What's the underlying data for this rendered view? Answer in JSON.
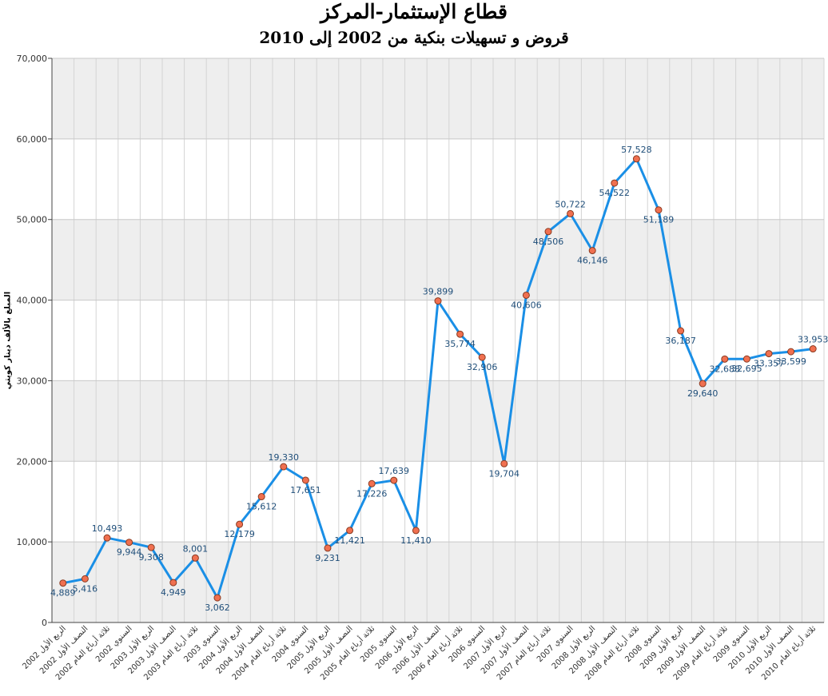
{
  "chart_data": {
    "type": "line",
    "title": "قطاع الإستثمار-المركز",
    "subtitle": "قروض و تسهيلات بنكية من 2002 إلى 2010",
    "ylabel": "المبلغ بالألف دينار كويتي",
    "ylim": [
      0,
      70000
    ],
    "yticks": [
      "0",
      "10,000",
      "20,000",
      "30,000",
      "40,000",
      "50,000",
      "60,000",
      "70,000"
    ],
    "grid": true,
    "line_color": "#1a8fe6",
    "marker_color": "#f07050",
    "band_color": "#eeeeee",
    "categories": [
      "الربع الأول 2002",
      "النصف الأول 2002",
      "ثلاثة أرباع العام 2002",
      "السنوي 2002",
      "الربع الأول 2003",
      "النصف الأول 2003",
      "ثلاثة أرباع العام 2003",
      "السنوي 2003",
      "الربع الأول 2004",
      "النصف الأول 2004",
      "ثلاثة أرباع العام 2004",
      "السنوي 2004",
      "الربع الأول 2005",
      "النصف الأول 2005",
      "ثلاثة أرباع العام 2005",
      "السنوي 2005",
      "الربع الأول 2006",
      "النصف الأول 2006",
      "ثلاثة أرباع العام 2006",
      "السنوي 2006",
      "الربع الأول 2007",
      "النصف الأول 2007",
      "ثلاثة أرباع العام 2007",
      "السنوي 2007",
      "الربع الأول 2008",
      "النصف الأول 2008",
      "ثلاثة أرباع العام 2008",
      "السنوي 2008",
      "الربع الأول 2009",
      "النصف الأول 2009",
      "ثلاثة أرباع العام 2009",
      "السنوي 2009",
      "الربع الأول 2010",
      "النصف الأول 2010",
      "ثلاثة أرباع العام 2010"
    ],
    "values": [
      4889,
      5416,
      10493,
      9944,
      9308,
      4949,
      8001,
      3062,
      12179,
      15612,
      19330,
      17651,
      9231,
      11421,
      17226,
      17639,
      11410,
      39899,
      35774,
      32906,
      19704,
      40606,
      48506,
      50722,
      46146,
      54522,
      57528,
      51189,
      36187,
      29640,
      32688,
      32695,
      33357,
      33599,
      33953
    ],
    "labels": [
      "4,889",
      "5,416",
      "10,493",
      "9,944",
      "9,308",
      "4,949",
      "8,001",
      "3,062",
      "12,179",
      "15,612",
      "19,330",
      "17,651",
      "9,231",
      "11,421",
      "17,226",
      "17,639",
      "11,410",
      "39,899",
      "35,774",
      "32,906",
      "19,704",
      "40,606",
      "48,506",
      "50,722",
      "46,146",
      "54,522",
      "57,528",
      "51,189",
      "36,187",
      "29,640",
      "32,688",
      "32,695",
      "33,357",
      "33,599",
      "33,953"
    ]
  }
}
